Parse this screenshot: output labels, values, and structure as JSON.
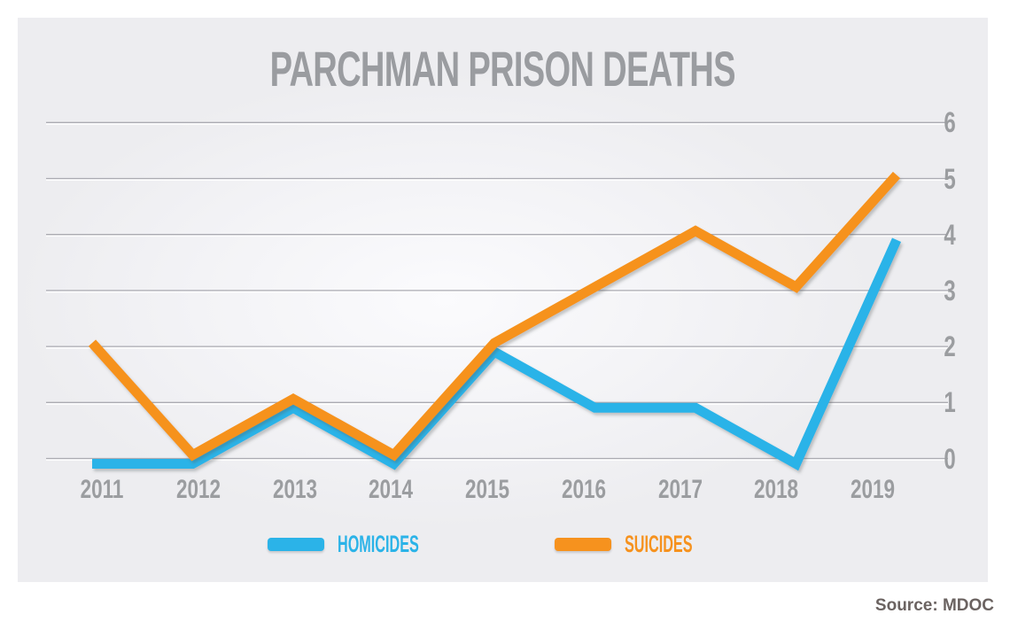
{
  "chart_data": {
    "type": "line",
    "title": "PARCHMAN PRISON DEATHS",
    "categories": [
      "2011",
      "2012",
      "2013",
      "2014",
      "2015",
      "2016",
      "2017",
      "2018",
      "2019"
    ],
    "series": [
      {
        "name": "HOMICIDES",
        "color": "#2BB3E8",
        "values": [
          0,
          0,
          1,
          0,
          2,
          1,
          1,
          0,
          4
        ]
      },
      {
        "name": "SUICIDES",
        "color": "#F6921E",
        "values": [
          2,
          0,
          1,
          0,
          2,
          3,
          4,
          3,
          5
        ]
      }
    ],
    "yticks": [
      0,
      1,
      2,
      3,
      4,
      5,
      6
    ],
    "ylim": [
      0,
      6
    ],
    "xlabel": "",
    "ylabel": "",
    "y_axis_side": "right",
    "grid": true,
    "legend_position": "bottom",
    "source_note": "Source: MDOC"
  },
  "colors": {
    "homicides_line": "#2BB3E8",
    "suicides_line": "#F6921E",
    "title_text": "#9A9CA0",
    "axis_text": "#9B9DA0",
    "gridline": "#ABABB2",
    "card_background": "#EDEDF0",
    "source_text": "#6B6361"
  }
}
